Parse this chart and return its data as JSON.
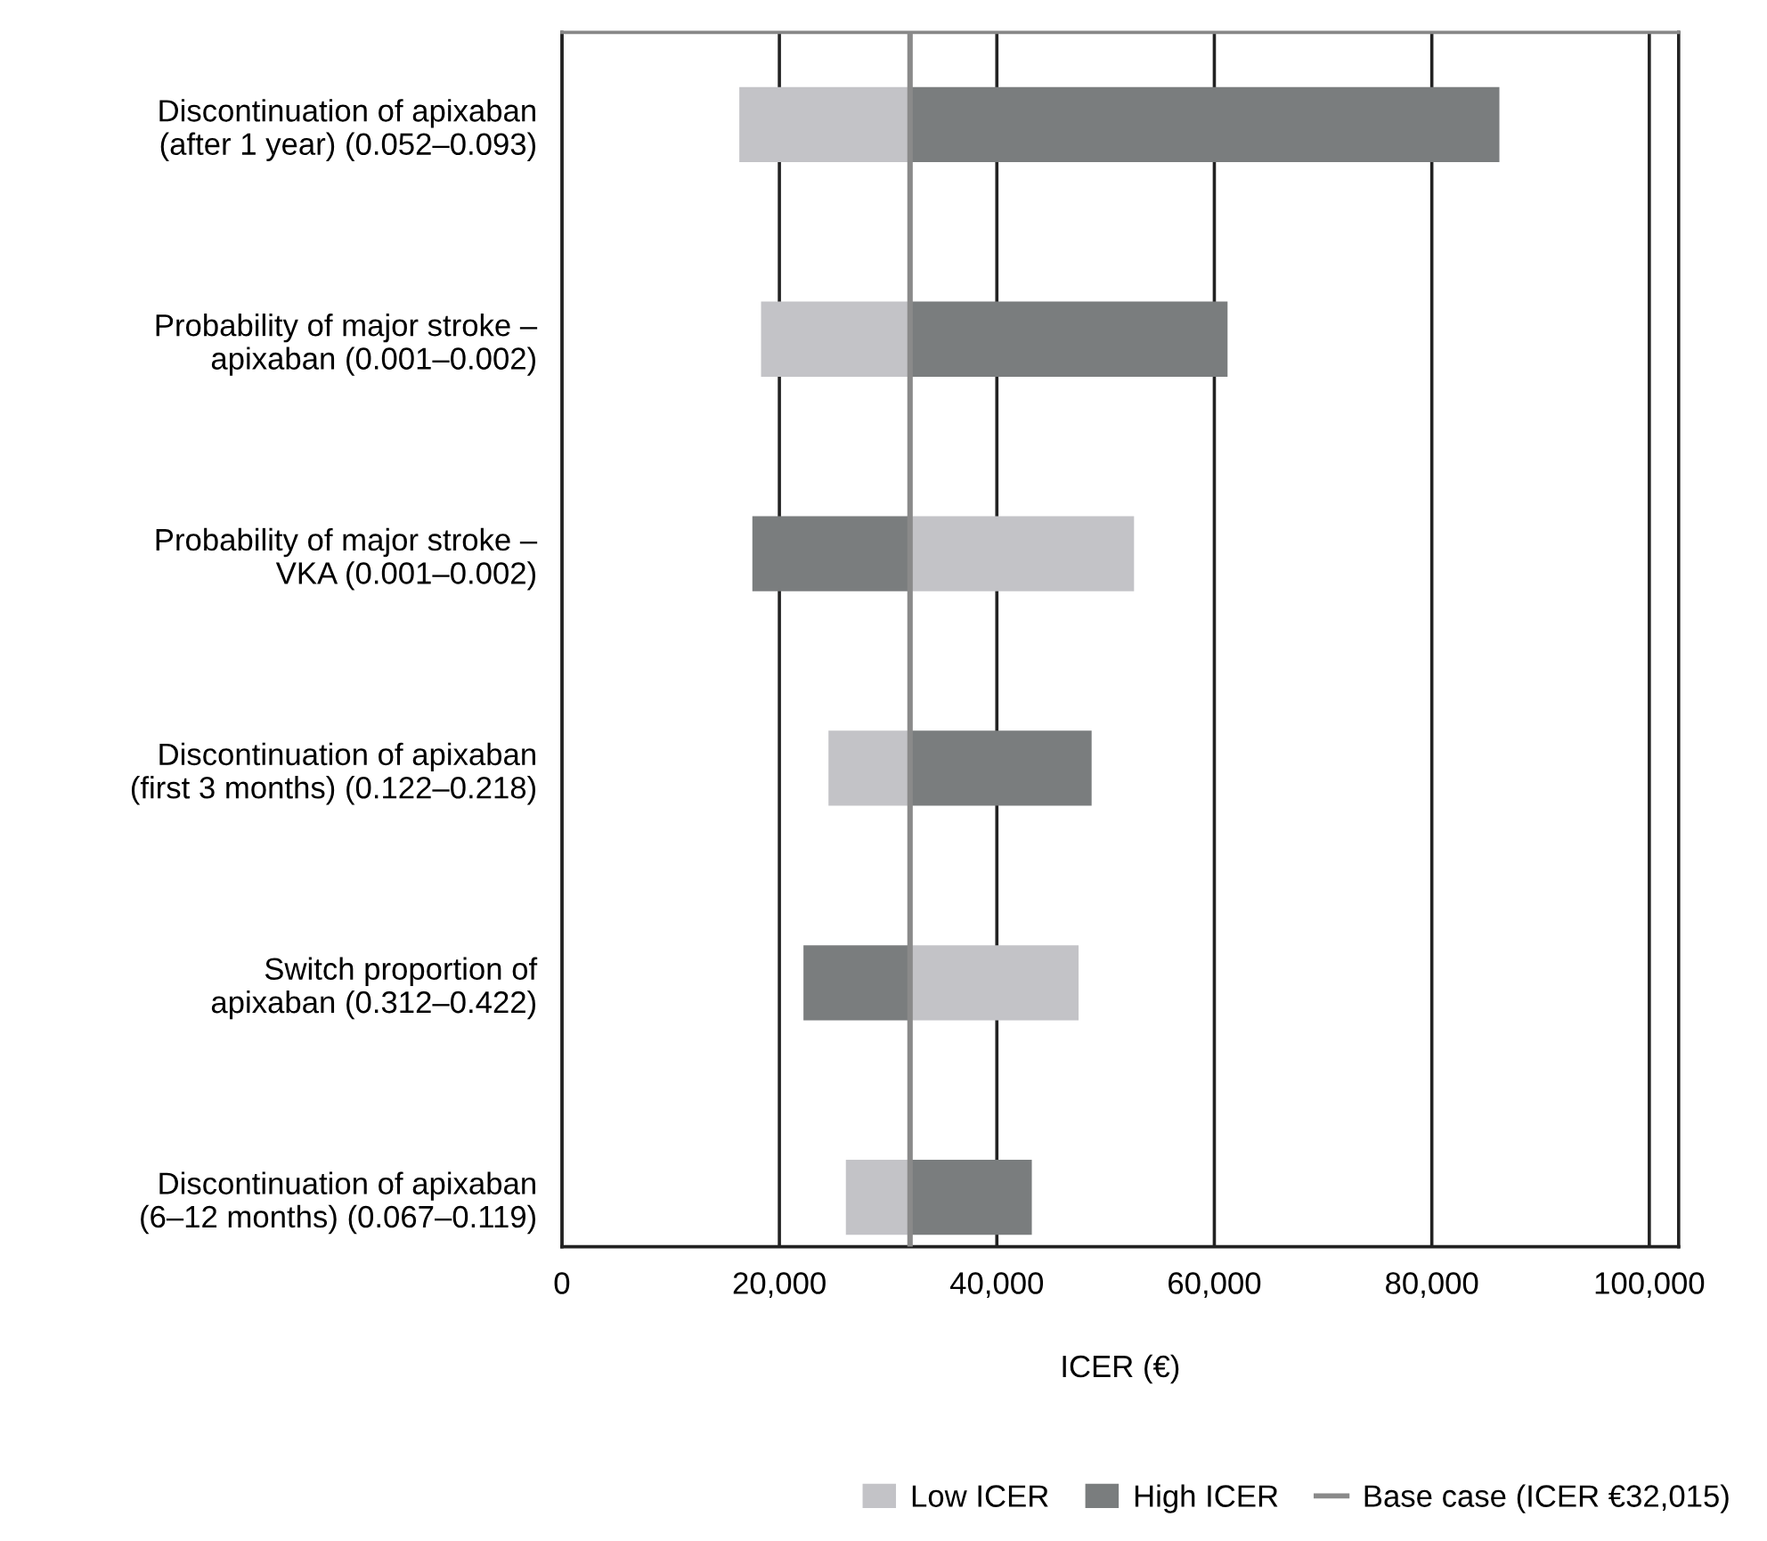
{
  "chart_data": {
    "type": "bar",
    "orientation": "horizontal",
    "xlabel": "ICER (€)",
    "categories": [
      "Discontinuation of apixaban\n(after 1 year) (0.052–0.093)",
      "Probability of major stroke –\napixaban (0.001–0.002)",
      "Probability of major stroke –\nVKA (0.001–0.002)",
      "Discontinuation of apixaban\n(first 3 months) (0.122–0.218)",
      "Switch proportion of\napixaban (0.312–0.422)",
      "Discontinuation of apixaban\n(6–12 months) (0.067–0.119)"
    ],
    "series": [
      {
        "name": "Low ICER",
        "color": "#c3c3c7",
        "base": [
          32015,
          32015,
          32015,
          32015,
          32015,
          32015
        ],
        "values": [
          -15700,
          -13700,
          20600,
          -7500,
          15500,
          -5900
        ]
      },
      {
        "name": "High ICER",
        "color": "#7a7d7e",
        "base": [
          32015,
          32015,
          32015,
          32015,
          32015,
          32015
        ],
        "values": [
          54200,
          29200,
          -14500,
          16700,
          -9800,
          11200
        ]
      }
    ],
    "ref_lines": [
      {
        "axis": "x",
        "value": 32015,
        "label": "Base case (ICER €32,015)",
        "color": "#8a8a8a"
      }
    ],
    "xlim": [
      0,
      102700
    ],
    "xticks": [
      0,
      {
        "value": 20000,
        "label": "20,000"
      },
      {
        "value": 40000,
        "label": "40,000"
      },
      {
        "value": 60000,
        "label": "60,000"
      },
      {
        "value": 80000,
        "label": "80,000"
      },
      {
        "value": 100000,
        "label": "100,000"
      }
    ],
    "grid": "x",
    "legend": "bottom"
  }
}
